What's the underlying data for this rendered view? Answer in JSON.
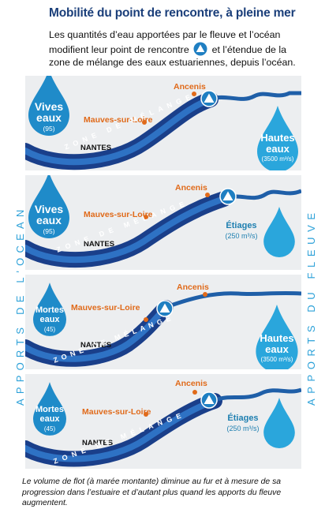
{
  "header": {
    "title": "Mobilité du point de rencontre, à pleine mer",
    "intro_before": "Les quantités d’eau apportées par le fleuve et l’océan modifient leur point de rencontre",
    "intro_after": "et l’étendue de la zone de mélange des eaux estuariennes, depuis l’océan."
  },
  "sides": {
    "left": "APPORTS DE L’OCÉAN",
    "right": "APPORTS DU FLEUVE"
  },
  "panels": [
    {
      "ocean_label_1": "Vives",
      "ocean_label_2": "eaux",
      "ocean_value": "(95)",
      "river_label_1": "Hautes",
      "river_label_2": "eaux",
      "river_value": "(3500 m³/s)",
      "place_ancenis": "Ancenis",
      "place_mauves": "Mauves-sur-Loire",
      "place_nantes": "NANTES",
      "zone": "ZONE DE MÉLANGE"
    },
    {
      "ocean_label_1": "Vives",
      "ocean_label_2": "eaux",
      "ocean_value": "(95)",
      "river_label_1": "Étiages",
      "river_value": "(250 m³/s)",
      "place_ancenis": "Ancenis",
      "place_mauves": "Mauves-sur-Loire",
      "place_nantes": "NANTES",
      "zone": "ZONE DE MÉLANGE"
    },
    {
      "ocean_label_1": "Mortes",
      "ocean_label_2": "eaux",
      "ocean_value": "(45)",
      "river_label_1": "Hautes",
      "river_label_2": "eaux",
      "river_value": "(3500 m³/s)",
      "place_ancenis": "Ancenis",
      "place_mauves": "Mauves-sur-Loire",
      "place_nantes": "NANTES",
      "zone": "ZONE DE MÉLANGE"
    },
    {
      "ocean_label_1": "Mortes",
      "ocean_label_2": "eaux",
      "ocean_value": "(45)",
      "river_label_1": "Étiages",
      "river_value": "(250 m³/s)",
      "place_ancenis": "Ancenis",
      "place_mauves": "Mauves-sur-Loire",
      "place_nantes": "NANTES",
      "zone": "ZONE DE MÉLANGE"
    }
  ],
  "footer": "Le volume de flot (à marée montante) diminue au fur et à mesure de sa progression dans l’estuaire et d’autant plus quand les apports du fleuve augmentent.",
  "colors": {
    "title": "#1b3f7a",
    "estuary_dark": "#1a3f8a",
    "estuary_light": "#2e72c4",
    "river": "#1f5fa8",
    "drop_ocean": "#1f8bc9",
    "drop_river": "#2aa6dc",
    "place_orange": "#e06a1a",
    "side_text": "#2aa0d8"
  }
}
